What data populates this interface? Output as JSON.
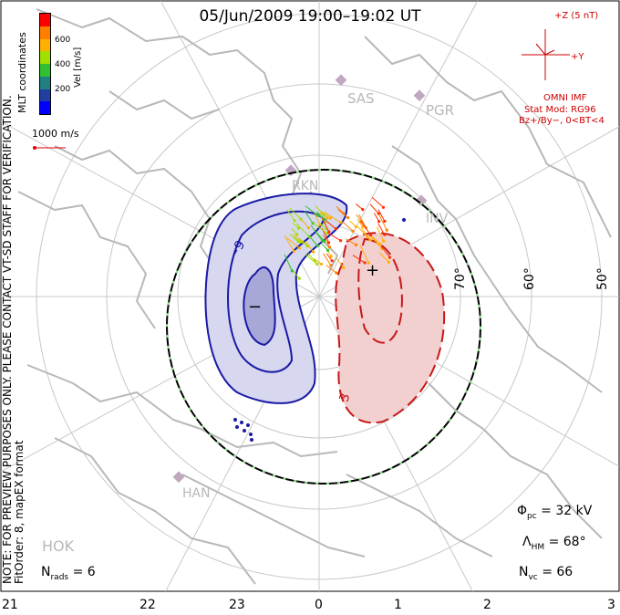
{
  "title": "05/Jun/2009 19:00–19:02 UT",
  "note": "NOTE: FOR PREVIEW PURPOSES ONLY. PLEASE CONTACT VT-SD STAFF FOR VERIFICATION.",
  "fitorder": "FitOrder: 8, mapEX format",
  "mlt_coords": "MLT coordinates",
  "colorbar": {
    "label": "Vel [m/s]",
    "ticks": [
      "600",
      "400",
      "200"
    ],
    "colors": [
      "#ff0000",
      "#ff7f00",
      "#ffb000",
      "#a0e000",
      "#30c030",
      "#208080",
      "#2040a0",
      "#0000ff"
    ]
  },
  "vector_scale": "1000 m/s",
  "imf": {
    "bz_label": "+Z (5 nT)",
    "by_label": "+Y",
    "source": "OMNI IMF",
    "model": "Stat Mod: RG96",
    "condition": "Bz+/By−, 0<BT<4"
  },
  "stats": {
    "phi_pc": "= 32 kV",
    "lambda_hm": "= 68°",
    "n_vc": "= 66",
    "n_rads": "= 6"
  },
  "stat_symbols": {
    "phi": "Φ",
    "phi_sub": "pc",
    "lambda": "Λ",
    "lambda_sub": "HM",
    "n": "N",
    "nvc_sub": "vc",
    "nrads_sub": "rads"
  },
  "mlt_labels": [
    "21",
    "22",
    "23",
    "0",
    "1",
    "2",
    "3"
  ],
  "lat_labels": [
    "70°",
    "60°",
    "50°"
  ],
  "stations": [
    "SAS",
    "PGR",
    "RKN",
    "INV",
    "HAN",
    "HOK"
  ],
  "contour_labels": {
    "neg": "−9",
    "pos": "3"
  },
  "potential_symbols": {
    "min": "−",
    "max": "+"
  },
  "colors": {
    "negative": "#1a1aa6",
    "positive": "#c81818",
    "grid": "#c0c0c0",
    "coast": "#b8b8b8",
    "imf": "#d00000"
  }
}
